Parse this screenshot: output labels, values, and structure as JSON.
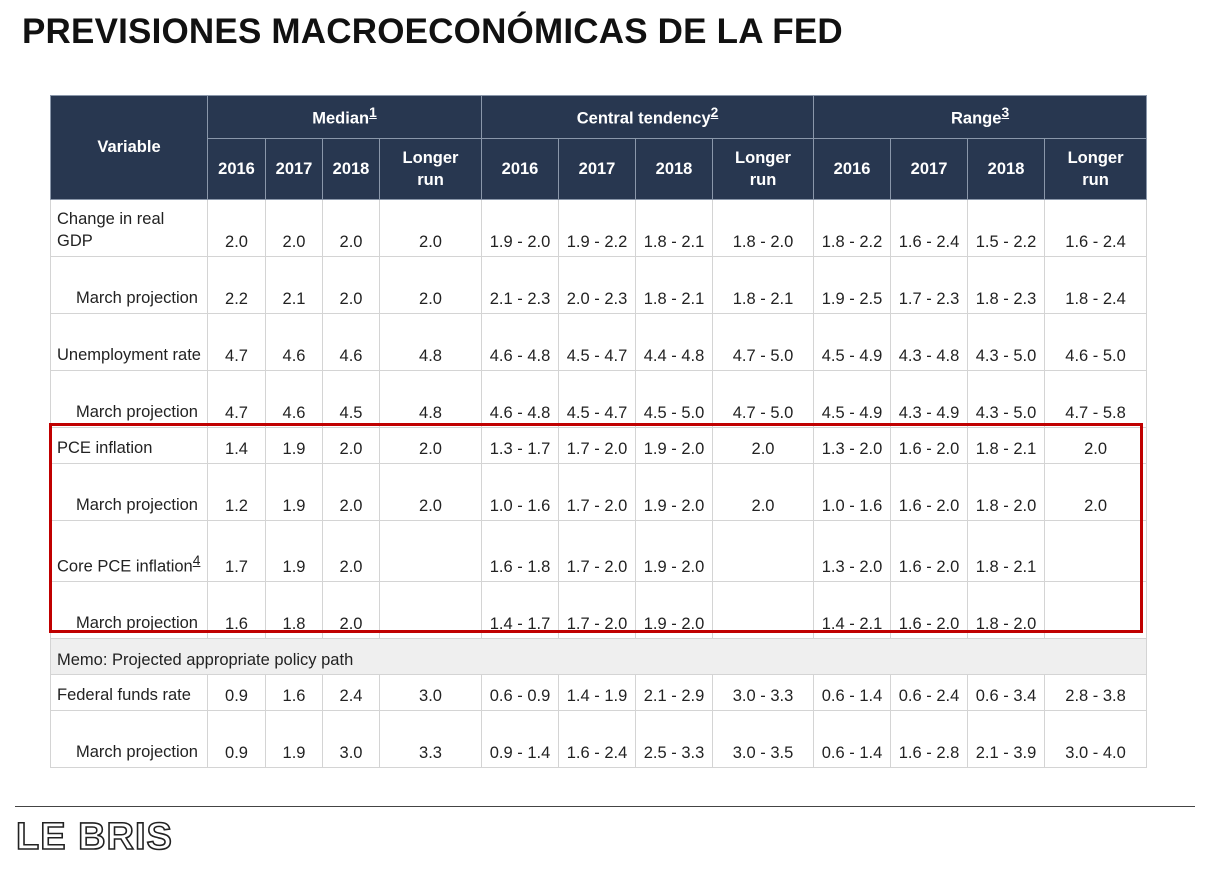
{
  "title": "PREVISIONES MACROECONÓMICAS DE LA FED",
  "brand": "LE BRIS",
  "table": {
    "variable_header": "Variable",
    "groups": [
      {
        "label": "Median",
        "sup": "1"
      },
      {
        "label": "Central tendency",
        "sup": "2"
      },
      {
        "label": "Range",
        "sup": "3"
      }
    ],
    "year_headers": [
      "2016",
      "2017",
      "2018",
      "Longer run"
    ],
    "rows": [
      {
        "label": "Change in real GDP",
        "sup": "",
        "sub": false,
        "cells": [
          "2.0",
          "2.0",
          "2.0",
          "2.0",
          "1.9 - 2.0",
          "1.9 - 2.2",
          "1.8 - 2.1",
          "1.8 - 2.0",
          "1.8 - 2.2",
          "1.6 - 2.4",
          "1.5 - 2.2",
          "1.6 - 2.4"
        ]
      },
      {
        "label": "March projection",
        "sup": "",
        "sub": true,
        "cells": [
          "2.2",
          "2.1",
          "2.0",
          "2.0",
          "2.1 - 2.3",
          "2.0 - 2.3",
          "1.8 - 2.1",
          "1.8 - 2.1",
          "1.9 - 2.5",
          "1.7 - 2.3",
          "1.8 - 2.3",
          "1.8 - 2.4"
        ]
      },
      {
        "label": "Unemployment rate",
        "sup": "",
        "sub": false,
        "cells": [
          "4.7",
          "4.6",
          "4.6",
          "4.8",
          "4.6 - 4.8",
          "4.5 - 4.7",
          "4.4 - 4.8",
          "4.7 - 5.0",
          "4.5 - 4.9",
          "4.3 - 4.8",
          "4.3 - 5.0",
          "4.6 - 5.0"
        ]
      },
      {
        "label": "March projection",
        "sup": "",
        "sub": true,
        "cells": [
          "4.7",
          "4.6",
          "4.5",
          "4.8",
          "4.6 - 4.8",
          "4.5 - 4.7",
          "4.5 - 5.0",
          "4.7 - 5.0",
          "4.5 - 4.9",
          "4.3 - 4.9",
          "4.3 - 5.0",
          "4.7 - 5.8"
        ]
      },
      {
        "label": "PCE inflation",
        "sup": "",
        "sub": false,
        "cells": [
          "1.4",
          "1.9",
          "2.0",
          "2.0",
          "1.3 - 1.7",
          "1.7 - 2.0",
          "1.9 - 2.0",
          "2.0",
          "1.3 - 2.0",
          "1.6 - 2.0",
          "1.8 - 2.1",
          "2.0"
        ]
      },
      {
        "label": "March projection",
        "sup": "",
        "sub": true,
        "cells": [
          "1.2",
          "1.9",
          "2.0",
          "2.0",
          "1.0 - 1.6",
          "1.7 - 2.0",
          "1.9 - 2.0",
          "2.0",
          "1.0 - 1.6",
          "1.6 - 2.0",
          "1.8 - 2.0",
          "2.0"
        ]
      },
      {
        "label": "Core PCE inflation",
        "sup": "4",
        "sub": false,
        "cells": [
          "1.7",
          "1.9",
          "2.0",
          "",
          "1.6 - 1.8",
          "1.7 - 2.0",
          "1.9 - 2.0",
          "",
          "1.3 - 2.0",
          "1.6 - 2.0",
          "1.8 - 2.1",
          ""
        ]
      },
      {
        "label": "March projection",
        "sup": "",
        "sub": true,
        "cells": [
          "1.6",
          "1.8",
          "2.0",
          "",
          "1.4 - 1.7",
          "1.7 - 2.0",
          "1.9 - 2.0",
          "",
          "1.4 - 2.1",
          "1.6 - 2.0",
          "1.8 - 2.0",
          ""
        ]
      }
    ],
    "memo": "Memo: Projected appropriate policy path",
    "memo_rows": [
      {
        "label": "Federal funds rate",
        "sup": "",
        "sub": false,
        "cells": [
          "0.9",
          "1.6",
          "2.4",
          "3.0",
          "0.6 - 0.9",
          "1.4 - 1.9",
          "2.1 - 2.9",
          "3.0 - 3.3",
          "0.6 - 1.4",
          "0.6 - 2.4",
          "0.6 - 3.4",
          "2.8 - 3.8"
        ]
      },
      {
        "label": "March projection",
        "sup": "",
        "sub": true,
        "cells": [
          "0.9",
          "1.9",
          "3.0",
          "3.3",
          "0.9 - 1.4",
          "1.6 - 2.4",
          "2.5 - 3.3",
          "3.0 - 3.5",
          "0.6 - 1.4",
          "1.6 - 2.8",
          "2.1 - 3.9",
          "3.0 - 4.0"
        ]
      }
    ],
    "highlight_color": "#c00000",
    "header_color": "#283750"
  }
}
